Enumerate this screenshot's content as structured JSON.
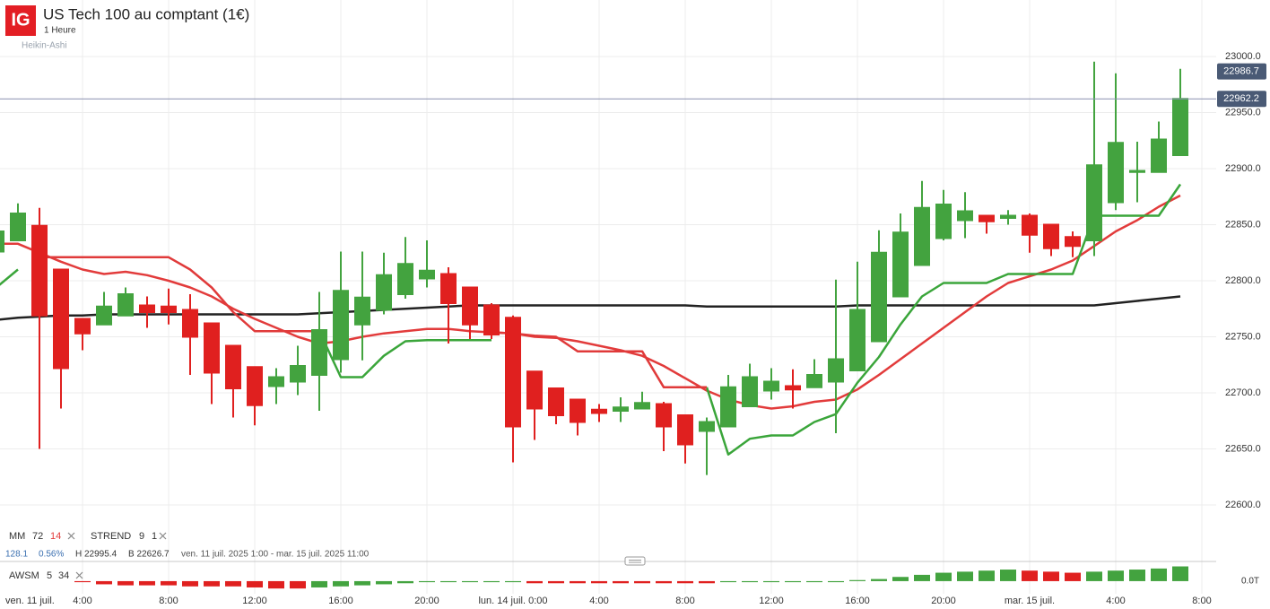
{
  "header": {
    "logo": "IG",
    "title": "US Tech 100 au comptant (1€)",
    "interval": "1 Heure",
    "style": "Heikin-Ashi",
    "change": "128.1",
    "change_pct": "0.56%",
    "high": "H 22995.4",
    "low": "B 22626.7",
    "range": "ven. 11 juil. 2025 1:00 - mar. 15 juil. 2025 11:00"
  },
  "chart_data": [
    {
      "type": "candlestick",
      "up_color": "#43a33f",
      "down_color": "#e0201f",
      "grid": true,
      "xlim": [
        0.1667,
        56.6667
      ],
      "ylim": [
        22549.6,
        23050.4
      ],
      "xticks": [
        {
          "value": 0,
          "label": "ven. 11 juil."
        },
        {
          "value": 4,
          "label": "4:00"
        },
        {
          "value": 8,
          "label": "8:00"
        },
        {
          "value": 12,
          "label": "12:00"
        },
        {
          "value": 16,
          "label": "16:00"
        },
        {
          "value": 20,
          "label": "20:00"
        },
        {
          "value": 24,
          "label": "lun. 14 juil. 0:00"
        },
        {
          "value": 28,
          "label": "4:00"
        },
        {
          "value": 32,
          "label": "8:00"
        },
        {
          "value": 36,
          "label": "12:00"
        },
        {
          "value": 40,
          "label": "16:00"
        },
        {
          "value": 44,
          "label": "20:00"
        },
        {
          "value": 48,
          "label": "mar. 15 juil."
        },
        {
          "value": 52,
          "label": "4:00"
        },
        {
          "value": 56,
          "label": "8:00"
        }
      ],
      "yticks": [
        {
          "value": 22600,
          "label": "22600.0"
        },
        {
          "value": 22650,
          "label": "22650.0"
        },
        {
          "value": 22700,
          "label": "22700.0"
        },
        {
          "value": 22750,
          "label": "22750.0"
        },
        {
          "value": 22800,
          "label": "22800.0"
        },
        {
          "value": 22850,
          "label": "22850.0"
        },
        {
          "value": 22900,
          "label": "22900.0"
        },
        {
          "value": 22950,
          "label": "22950.0"
        },
        {
          "value": 23000,
          "label": "23000.0"
        }
      ],
      "x": [
        0,
        1,
        2,
        3,
        4,
        5,
        6,
        7,
        8,
        9,
        10,
        11,
        12,
        13,
        14,
        15,
        16,
        17,
        18,
        19,
        20,
        21,
        22,
        23,
        24,
        25,
        26,
        27,
        28,
        29,
        30,
        31,
        32,
        33,
        34,
        35,
        36,
        37,
        38,
        39,
        40,
        41,
        42,
        43,
        44,
        45,
        46,
        47,
        48,
        49,
        50,
        51,
        52,
        53,
        54,
        55
      ],
      "open": [
        22826,
        22836,
        22849,
        22810,
        22766,
        22761,
        22769,
        22778,
        22777,
        22774,
        22762,
        22742,
        22723,
        22706,
        22710,
        22716,
        22730,
        22761,
        22774,
        22788,
        22802,
        22806,
        22794,
        22778,
        22767,
        22719,
        22704,
        22694,
        22685,
        22684,
        22686,
        22690,
        22680,
        22666,
        22670,
        22688,
        22702,
        22706,
        22705,
        22710,
        22720,
        22746,
        22786,
        22814,
        22838,
        22854,
        22858,
        22856,
        22858,
        22850,
        22839,
        22836,
        22870,
        22897,
        22897,
        22912
      ],
      "high": [
        22846,
        22869,
        22865,
        22810,
        22766,
        22790,
        22794,
        22786,
        22793,
        22788,
        22762,
        22742,
        22723,
        22722,
        22742,
        22790,
        22826,
        22826,
        22825,
        22839,
        22836,
        22812,
        22794,
        22780,
        22769,
        22719,
        22704,
        22694,
        22690,
        22696,
        22701,
        22692,
        22680,
        22678,
        22716,
        22726,
        22722,
        22721,
        22730,
        22801,
        22817,
        22845,
        22860,
        22889,
        22881,
        22879,
        22858,
        22863,
        22860,
        22850,
        22844,
        22995.4,
        22985,
        22924,
        22942,
        22989
      ],
      "low": [
        22822,
        22836,
        22650,
        22686,
        22738,
        22761,
        22769,
        22758,
        22761,
        22716,
        22690,
        22678,
        22671,
        22690,
        22698,
        22684,
        22718,
        22729,
        22770,
        22784,
        22794,
        22744,
        22748,
        22748,
        22638,
        22658,
        22672,
        22662,
        22674,
        22674,
        22686,
        22648,
        22637,
        22626.7,
        22670,
        22688,
        22694,
        22686,
        22705,
        22664,
        22720,
        22746,
        22786,
        22814,
        22836,
        22838,
        22842,
        22850,
        22825,
        22822,
        22821,
        22822,
        22863,
        22870,
        22897,
        22912
      ],
      "close": [
        22844,
        22860,
        22769,
        22722,
        22753,
        22777,
        22788,
        22772,
        22772,
        22750,
        22718,
        22704,
        22689,
        22714,
        22724,
        22756,
        22791,
        22785,
        22805,
        22815,
        22809,
        22780,
        22761,
        22752,
        22670,
        22686,
        22680,
        22674,
        22682,
        22687,
        22691,
        22670,
        22654,
        22674,
        22705,
        22714,
        22710,
        22703,
        22716,
        22730,
        22774,
        22825,
        22843,
        22865,
        22868,
        22862,
        22853,
        22858,
        22841,
        22829,
        22831,
        22903,
        22923,
        22898,
        22926,
        22962.2
      ],
      "series": [
        {
          "name": "MM",
          "period": 72,
          "color": "#222222",
          "values": [
            22765,
            22767,
            22768,
            22769,
            22769,
            22770,
            22770,
            22770,
            22770,
            22770,
            22770,
            22770,
            22770,
            22770,
            22770,
            22771,
            22772,
            22773,
            22774,
            22775,
            22776,
            22777,
            22778,
            22778,
            22778,
            22778,
            22778,
            22778,
            22778,
            22778,
            22778,
            22778,
            22778,
            22777,
            22777,
            22777,
            22777,
            22777,
            22777,
            22777,
            22778,
            22778,
            22778,
            22778,
            22778,
            22778,
            22778,
            22778,
            22778,
            22778,
            22778,
            22778,
            22780,
            22782,
            22784,
            22786
          ]
        },
        {
          "name": "MM",
          "period": 14,
          "color": "#e23b3b",
          "values": [
            22833,
            22833,
            22825,
            22817,
            22810,
            22806,
            22808,
            22805,
            22800,
            22794,
            22786,
            22775,
            22766,
            22758,
            22750,
            22744,
            22746,
            22750,
            22753,
            22755,
            22757,
            22757,
            22755,
            22754,
            22753,
            22750,
            22749,
            22746,
            22742,
            22738,
            22733,
            22724,
            22713,
            22702,
            22694,
            22689,
            22686,
            22688,
            22692,
            22694,
            22703,
            22716,
            22730,
            22744,
            22758,
            22772,
            22786,
            22798,
            22804,
            22810,
            22818,
            22831,
            22844,
            22854,
            22866,
            22876
          ]
        }
      ],
      "strend": {
        "name": "STREND",
        "params": [
          9,
          1
        ],
        "up_color": "#3aa53a",
        "down_color": "#e03a3a",
        "up_values": [
          22794,
          22810,
          null,
          null,
          null,
          null,
          null,
          null,
          null,
          null,
          null,
          null,
          null,
          null,
          null,
          22755,
          22714,
          22714,
          22733,
          22746,
          22747,
          22747,
          22747,
          22747,
          null,
          null,
          null,
          null,
          null,
          null,
          null,
          null,
          null,
          22705,
          22645,
          22659,
          22662,
          22662,
          22674,
          22681,
          22709,
          22732,
          22761,
          22786,
          22798,
          22798,
          22798,
          22806,
          22806,
          22806,
          22806,
          22858,
          22858,
          22858,
          22858,
          22886
        ],
        "down_values": [
          null,
          null,
          22821,
          22821,
          22821,
          22821,
          22821,
          22821,
          22821,
          22810,
          22794,
          22772,
          22755,
          22755,
          22755,
          22755,
          null,
          null,
          null,
          null,
          null,
          null,
          null,
          22754,
          22753,
          22751,
          22750,
          22737,
          22737,
          22737,
          22737,
          22705,
          22705,
          22705,
          null,
          null,
          null,
          null,
          null,
          null,
          null,
          null,
          null,
          null,
          null,
          null,
          null,
          null,
          null,
          null,
          null,
          null,
          null,
          null,
          null,
          null
        ]
      },
      "price_markers": [
        {
          "value": 22986.7,
          "line": false,
          "color": "#4a5a75"
        },
        {
          "value": 22962.2,
          "line": true,
          "color": "#4a5a75"
        }
      ]
    },
    {
      "type": "bar",
      "name": "AWSM",
      "params": [
        5,
        34
      ],
      "up_color": "#43a33f",
      "down_color": "#e0201f",
      "ylim": [
        -12,
        17
      ],
      "yticks": [
        {
          "value": 0,
          "label": "0.0T"
        }
      ],
      "values": [
        null,
        null,
        null,
        null,
        -1,
        -3,
        -4,
        -4,
        -4,
        -5,
        -5,
        -5,
        -6,
        -7,
        -7,
        -6,
        -5,
        -4,
        -3,
        -2,
        -1,
        -1,
        -1,
        -1,
        -1,
        -2,
        -2,
        -2,
        -2,
        -2,
        -2,
        -2,
        -2,
        -2,
        -1,
        -1,
        -1,
        -1,
        -1,
        -1,
        1,
        2,
        4,
        6,
        8,
        9,
        10,
        11,
        10,
        9,
        8,
        9,
        10,
        11,
        12,
        14
      ]
    }
  ]
}
